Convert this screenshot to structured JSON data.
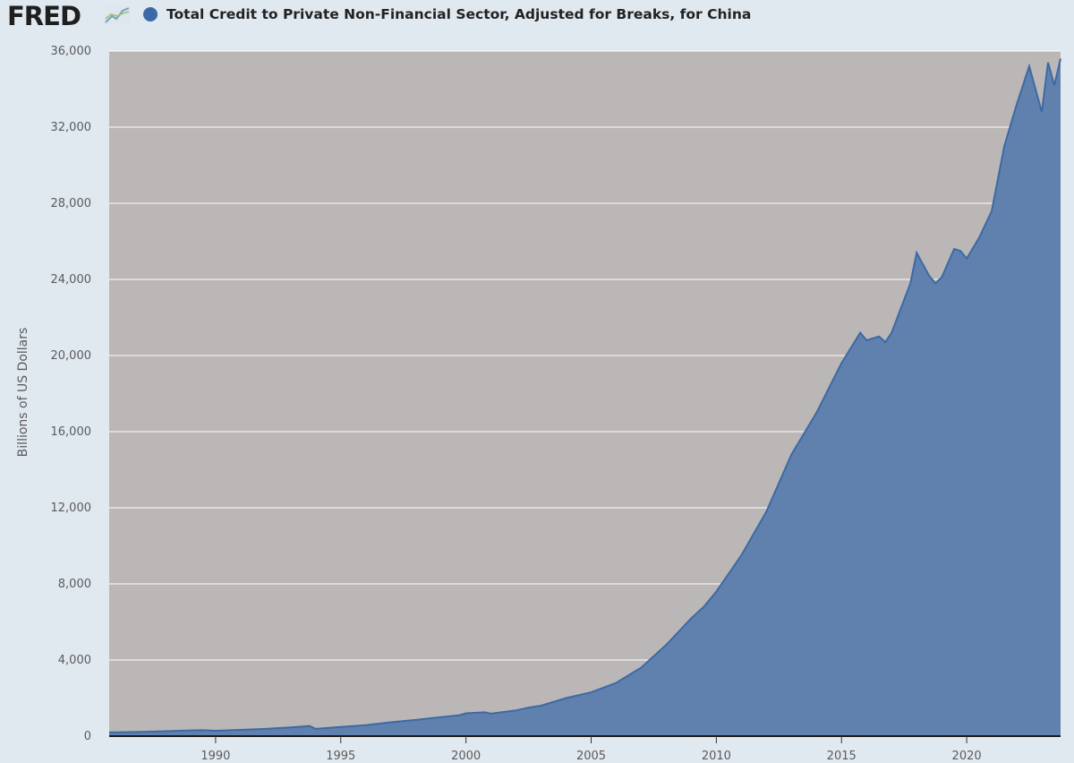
{
  "logo": {
    "text": "FRED"
  },
  "colors": {
    "page_background": "#e1e9f0",
    "plot_background": "#bbb7b6",
    "series_fill": "#6081ad",
    "series_line": "#3c6aa6",
    "grid": "#ffffff",
    "text": "#5a5a5a"
  },
  "chart_data": {
    "type": "area",
    "title": "Total Credit to Private Non-Financial Sector, Adjusted for Breaks, for China",
    "ylabel": "Billions of US Dollars",
    "xlabel": "",
    "legend_position": "top-left",
    "grid": "horizontal",
    "xlim": [
      1985.75,
      2023.75
    ],
    "ylim": [
      0,
      36000
    ],
    "x_ticks": [
      1990,
      1995,
      2000,
      2005,
      2010,
      2015,
      2020
    ],
    "x_tick_labels": [
      "1990",
      "1995",
      "2000",
      "2005",
      "2010",
      "2015",
      "2020"
    ],
    "y_ticks": [
      0,
      4000,
      8000,
      12000,
      16000,
      20000,
      24000,
      28000,
      32000,
      36000
    ],
    "y_tick_labels": [
      "0",
      "4,000",
      "8,000",
      "12,000",
      "16,000",
      "20,000",
      "24,000",
      "28,000",
      "32,000",
      "36,000"
    ],
    "series": [
      {
        "x": [
          1985.75,
          1987,
          1988,
          1989,
          1989.5,
          1990,
          1991,
          1992,
          1993,
          1993.75,
          1994,
          1995,
          1996,
          1997,
          1998,
          1999,
          1999.75,
          2000,
          2000.75,
          2001,
          2002,
          2002.5,
          2003,
          2004,
          2005,
          2006,
          2007,
          2008,
          2009,
          2009.5,
          2010,
          2011,
          2012,
          2013,
          2014,
          2015,
          2015.75,
          2016,
          2016.5,
          2016.75,
          2017,
          2017.75,
          2018,
          2018.5,
          2018.75,
          2019,
          2019.5,
          2019.75,
          2020,
          2020.5,
          2021,
          2021.5,
          2022,
          2022.5,
          2023,
          2023.25,
          2023.5,
          2023.75
        ],
        "y": [
          200,
          220,
          260,
          300,
          310,
          280,
          330,
          380,
          460,
          530,
          380,
          480,
          580,
          730,
          850,
          1000,
          1100,
          1200,
          1250,
          1180,
          1350,
          1500,
          1600,
          2000,
          2300,
          2800,
          3600,
          4800,
          6200,
          6800,
          7600,
          9500,
          11800,
          14800,
          17000,
          19600,
          21200,
          20800,
          21000,
          20700,
          21200,
          23800,
          25400,
          24200,
          23800,
          24100,
          25600,
          25500,
          25100,
          26200,
          27600,
          31000,
          33200,
          35200,
          32800,
          35400,
          34200,
          35600
        ]
      }
    ]
  }
}
